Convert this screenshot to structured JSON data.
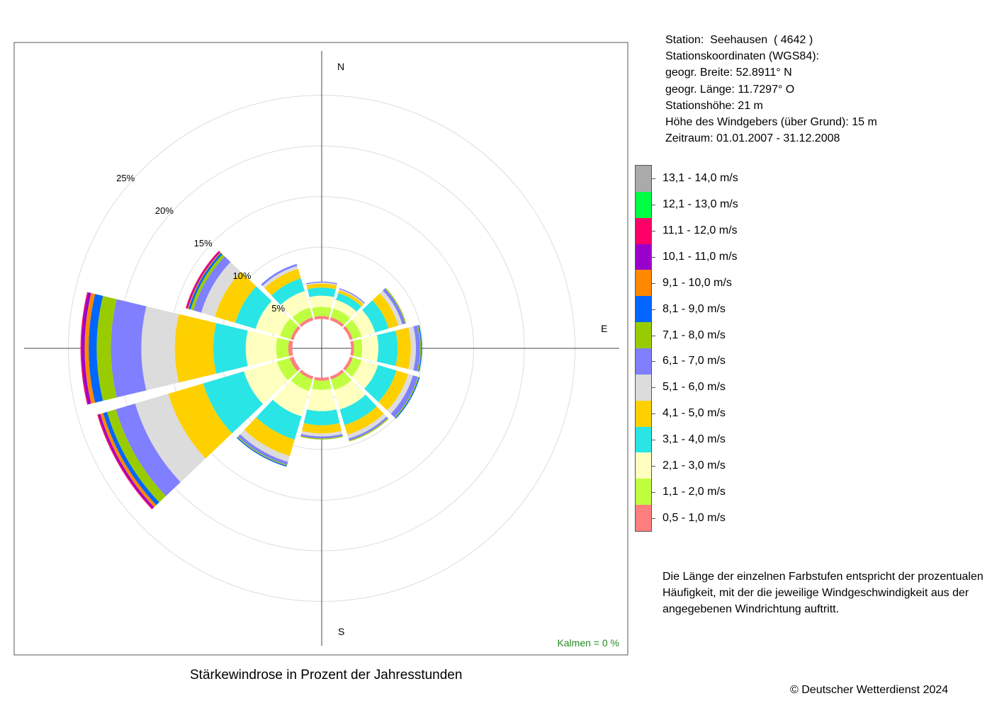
{
  "station_info": [
    "Station:  Seehausen  ( 4642 )",
    "Stationskoordinaten (WGS84):",
    "geogr. Breite: 52.8911° N",
    "geogr. Länge: 11.7297° O",
    "Stationshöhe: 21 m",
    "Höhe des Windgebers (über Grund): 15 m",
    "Zeitraum: 01.01.2007 - 31.12.2008"
  ],
  "note": [
    "Die Länge der einzelnen Farbstufen entspricht der prozentualen",
    "Häufigkeit, mit der die jeweilige Windgeschwindigkeit aus der",
    "angegebenen Windrichtung auftritt."
  ],
  "caption": "Stärkewindrose in Prozent der Jahresstunden",
  "copyright": "© Deutscher Wetterdienst  2024",
  "calms_label": "Kalmen  =  0 %",
  "compass": {
    "n": "N",
    "e": "E",
    "s": "S"
  },
  "colors": {
    "calms": "#228B22",
    "axis": "#444444",
    "grid": "#dddddd",
    "frame": "#555555"
  },
  "chart_data": {
    "type": "polar-stacked-bar",
    "title": "Stärkewindrose in Prozent der Jahresstunden",
    "radial_ticks": [
      "5%",
      "10%",
      "15%",
      "20%",
      "25%"
    ],
    "radial_tick_values": [
      5,
      10,
      15,
      20,
      25
    ],
    "calm_circle_percent": 2.9,
    "directions_deg": [
      0,
      30,
      60,
      90,
      120,
      150,
      180,
      210,
      240,
      270,
      300,
      330
    ],
    "speed_classes": [
      {
        "label": "0,5 - 1,0 m/s",
        "color": "#FF7F7F"
      },
      {
        "label": "1,1 - 2,0 m/s",
        "color": "#BFFF3F"
      },
      {
        "label": "2,1 - 3,0 m/s",
        "color": "#FFFFBF"
      },
      {
        "label": "3,1 - 4,0 m/s",
        "color": "#2AE5E5"
      },
      {
        "label": "4,1 - 5,0 m/s",
        "color": "#FFD000"
      },
      {
        "label": "5,1 - 6,0 m/s",
        "color": "#DCDCDC"
      },
      {
        "label": "6,1 - 7,0 m/s",
        "color": "#7F7FFF"
      },
      {
        "label": "7,1 - 8,0 m/s",
        "color": "#99CC00"
      },
      {
        "label": "8,1 - 9,0 m/s",
        "color": "#0066FF"
      },
      {
        "label": "9,1 - 10,0 m/s",
        "color": "#FF8800"
      },
      {
        "label": "10,1 - 11,0 m/s",
        "color": "#9900CC"
      },
      {
        "label": "11,1 - 12,0 m/s",
        "color": "#FF0066"
      },
      {
        "label": "12,1 - 13,0 m/s",
        "color": "#00FF44"
      },
      {
        "label": "13,1 - 14,0 m/s",
        "color": "#AAAAAA"
      }
    ],
    "values": [
      [
        0.3,
        0.9,
        1.1,
        0.8,
        0.4,
        0.1,
        0.1,
        0.0,
        0.0,
        0.0,
        0.0,
        0.0,
        0.0,
        0.0
      ],
      [
        0.3,
        0.9,
        0.9,
        0.7,
        0.3,
        0.1,
        0.1,
        0.0,
        0.0,
        0.0,
        0.0,
        0.0,
        0.0,
        0.0
      ],
      [
        0.3,
        0.9,
        1.4,
        1.4,
        1.0,
        0.4,
        0.3,
        0.1,
        0.0,
        0.0,
        0.0,
        0.0,
        0.0,
        0.0
      ],
      [
        0.3,
        0.8,
        1.6,
        1.9,
        1.3,
        0.5,
        0.4,
        0.1,
        0.1,
        0.0,
        0.0,
        0.0,
        0.0,
        0.0
      ],
      [
        0.3,
        0.9,
        1.7,
        1.9,
        1.2,
        0.5,
        0.5,
        0.1,
        0.1,
        0.0,
        0.0,
        0.0,
        0.0,
        0.0
      ],
      [
        0.3,
        1.1,
        2.0,
        1.6,
        1.0,
        0.4,
        0.2,
        0.1,
        0.0,
        0.0,
        0.0,
        0.0,
        0.0,
        0.0
      ],
      [
        0.3,
        0.9,
        2.1,
        1.4,
        0.8,
        0.3,
        0.2,
        0.1,
        0.0,
        0.0,
        0.0,
        0.0,
        0.0,
        0.0
      ],
      [
        0.3,
        1.2,
        2.6,
        2.4,
        1.7,
        0.6,
        0.3,
        0.1,
        0.1,
        0.0,
        0.0,
        0.0,
        0.0,
        0.0
      ],
      [
        0.4,
        1.3,
        3.4,
        4.2,
        3.6,
        3.4,
        2.0,
        0.9,
        0.4,
        0.3,
        0.2,
        0.1,
        0.0,
        0.0
      ],
      [
        0.4,
        1.2,
        3.0,
        3.2,
        3.8,
        3.3,
        3.0,
        1.4,
        0.8,
        0.4,
        0.3,
        0.1,
        0.0,
        0.0
      ],
      [
        0.3,
        1.1,
        2.5,
        2.1,
        2.1,
        1.4,
        0.8,
        0.3,
        0.2,
        0.1,
        0.1,
        0.1,
        0.0,
        0.0
      ],
      [
        0.3,
        1.0,
        1.7,
        1.3,
        1.0,
        0.3,
        0.2,
        0.0,
        0.0,
        0.0,
        0.0,
        0.0,
        0.0,
        0.0
      ]
    ],
    "legend_placement": "right",
    "grid": true
  }
}
